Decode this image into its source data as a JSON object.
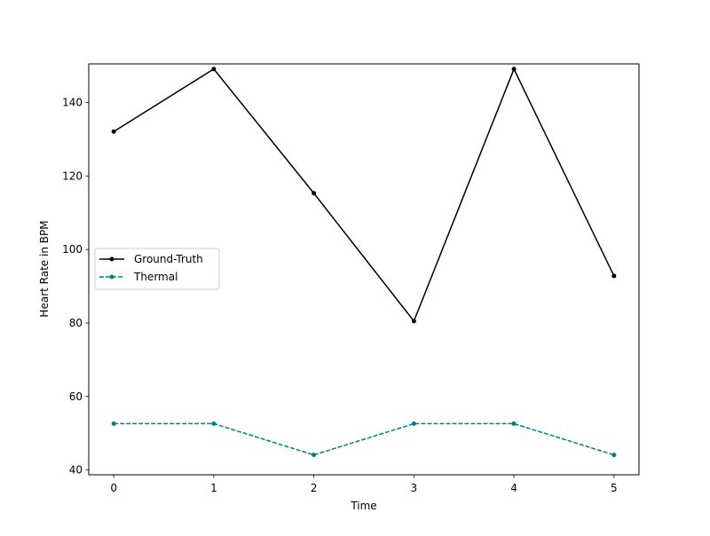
{
  "chart_data": {
    "type": "line",
    "title": "",
    "xlabel": "Time",
    "ylabel": "Heart Rate in BPM",
    "x": [
      0,
      1,
      2,
      3,
      4,
      5
    ],
    "xticks": [
      "0",
      "1",
      "2",
      "3",
      "4",
      "5"
    ],
    "yticks": [
      "40",
      "60",
      "80",
      "100",
      "120",
      "140"
    ],
    "xlim": [
      -0.25,
      5.25
    ],
    "ylim": [
      38.7,
      150.5
    ],
    "grid": false,
    "legend_position": "center-left",
    "series": [
      {
        "name": "Ground-Truth",
        "values": [
          132.1,
          149.1,
          115.3,
          80.5,
          149.1,
          92.8
        ],
        "color": "#000000",
        "linestyle": "solid",
        "marker": "dot"
      },
      {
        "name": "Thermal",
        "values": [
          52.6,
          52.6,
          44.1,
          52.6,
          52.6,
          44.1
        ],
        "color": "#008080",
        "linestyle": "dashed",
        "marker": "dot"
      }
    ]
  }
}
